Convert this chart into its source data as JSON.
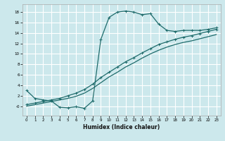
{
  "title": "",
  "xlabel": "Humidex (Indice chaleur)",
  "ylabel": "",
  "bg_color": "#cce8ec",
  "grid_color": "#ffffff",
  "line_color": "#1e6b6b",
  "xlim": [
    -0.5,
    23.5
  ],
  "ylim": [
    -1.8,
    19.5
  ],
  "xticks": [
    0,
    1,
    2,
    3,
    4,
    5,
    6,
    7,
    8,
    9,
    10,
    11,
    12,
    13,
    14,
    15,
    16,
    17,
    18,
    19,
    20,
    21,
    22,
    23
  ],
  "yticks": [
    0,
    2,
    4,
    6,
    8,
    10,
    12,
    14,
    16,
    18
  ],
  "ytick_labels": [
    "-0",
    "2",
    "4",
    "6",
    "8",
    "10",
    "12",
    "14",
    "16",
    "18"
  ],
  "curve1_x": [
    0,
    1,
    2,
    3,
    4,
    5,
    6,
    7,
    8,
    9,
    10,
    11,
    12,
    13,
    14,
    15,
    16,
    17,
    18,
    19,
    20,
    21,
    22,
    23
  ],
  "curve1_y": [
    3.0,
    1.5,
    1.2,
    1.0,
    -0.2,
    -0.3,
    -0.1,
    -0.4,
    1.0,
    12.8,
    17.0,
    18.0,
    18.2,
    18.0,
    17.5,
    17.7,
    15.7,
    14.5,
    14.3,
    14.5,
    14.5,
    14.5,
    14.7,
    15.0
  ],
  "curve2_x": [
    0,
    1,
    2,
    3,
    4,
    5,
    6,
    7,
    8,
    9,
    10,
    11,
    12,
    13,
    14,
    15,
    16,
    17,
    18,
    19,
    20,
    21,
    22,
    23
  ],
  "curve2_y": [
    0.3,
    0.6,
    0.9,
    1.2,
    1.5,
    2.0,
    2.5,
    3.2,
    4.2,
    5.5,
    6.5,
    7.5,
    8.5,
    9.3,
    10.2,
    11.0,
    11.8,
    12.3,
    12.8,
    13.2,
    13.5,
    13.9,
    14.3,
    14.7
  ],
  "curve3_x": [
    0,
    1,
    2,
    3,
    4,
    5,
    6,
    7,
    8,
    9,
    10,
    11,
    12,
    13,
    14,
    15,
    16,
    17,
    18,
    19,
    20,
    21,
    22,
    23
  ],
  "curve3_y": [
    0.0,
    0.3,
    0.6,
    0.9,
    1.2,
    1.5,
    1.9,
    2.5,
    3.4,
    4.5,
    5.6,
    6.5,
    7.5,
    8.3,
    9.2,
    10.0,
    10.7,
    11.3,
    11.8,
    12.2,
    12.5,
    12.9,
    13.3,
    13.7
  ]
}
